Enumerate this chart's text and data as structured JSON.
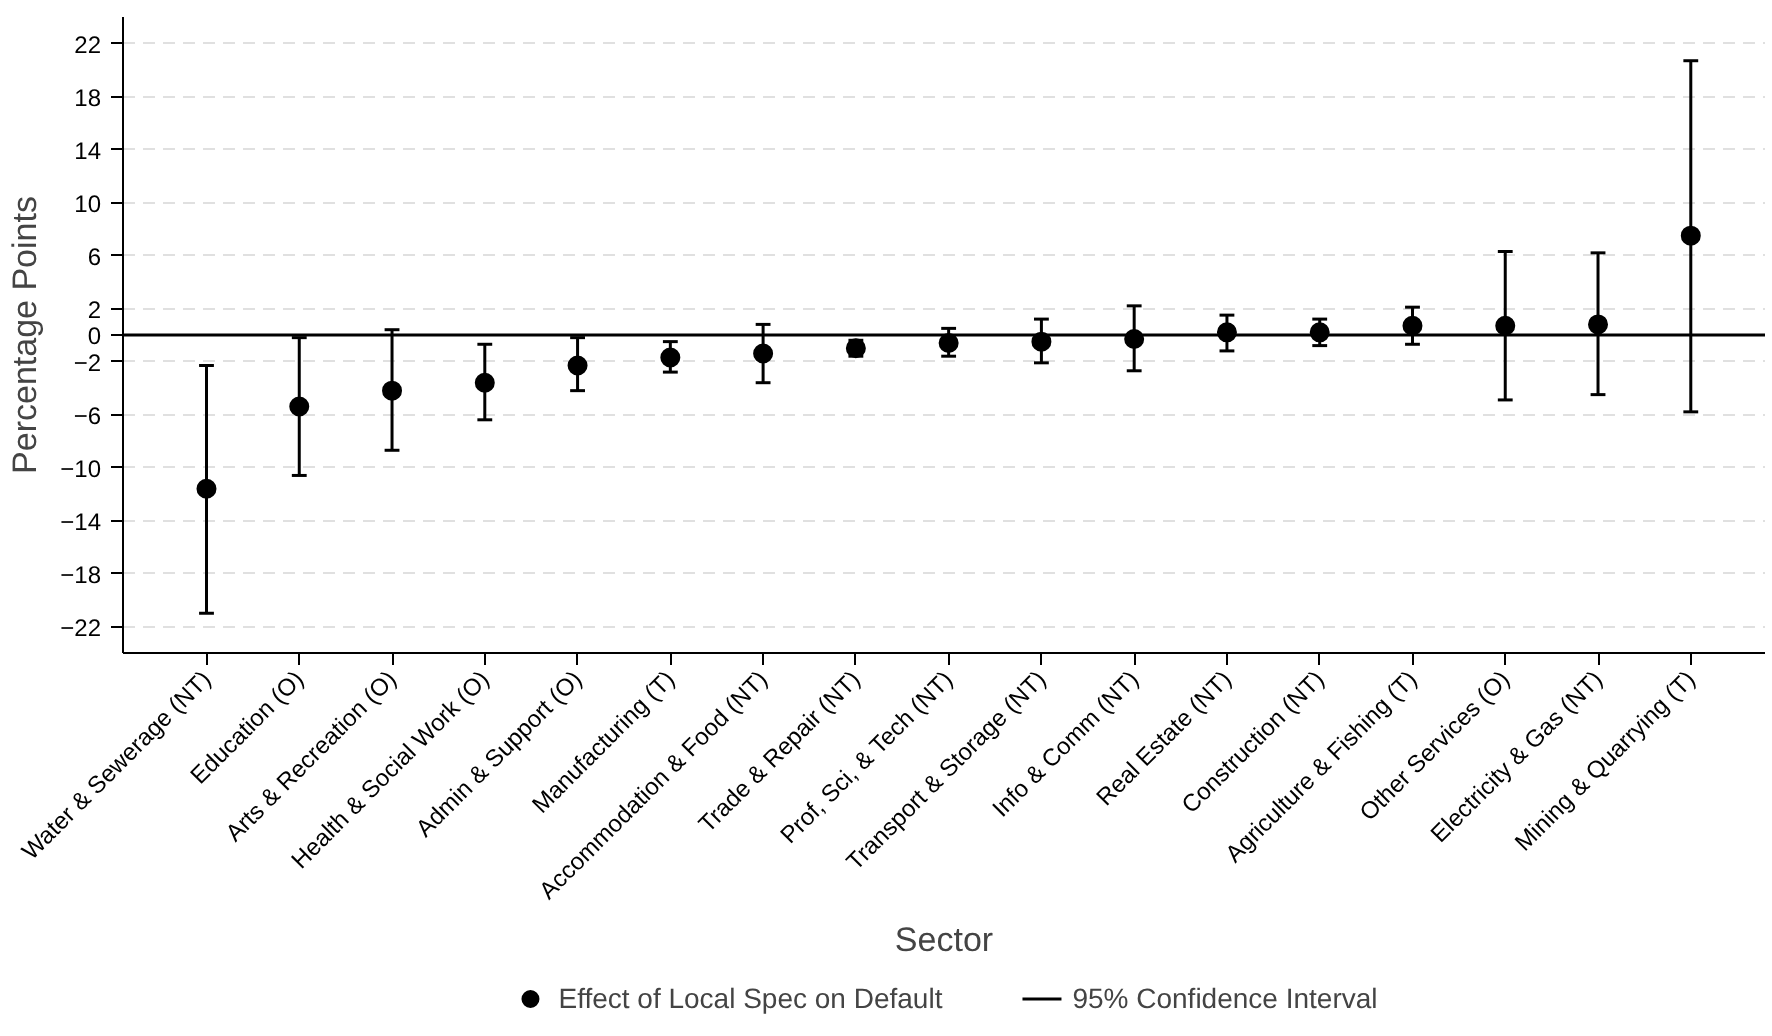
{
  "chart_data": {
    "type": "scatter",
    "xlabel": "Sector",
    "ylabel": "Percentage Points",
    "categories": [
      "Water & Sewerage (NT)",
      "Education (O)",
      "Arts & Recreation (O)",
      "Health & Social Work (O)",
      "Admin & Support (O)",
      "Manufacturing (T)",
      "Accommodation & Food (NT)",
      "Trade & Repair (NT)",
      "Prof, Sci, & Tech (NT)",
      "Transport & Storage (NT)",
      "Info & Comm (NT)",
      "Real Estate (NT)",
      "Construction (NT)",
      "Agriculture & Fishing (T)",
      "Other Services (O)",
      "Electricity & Gas (NT)",
      "Mining & Quarrying (T)"
    ],
    "series": [
      {
        "name": "Effect of Local Spec on Default",
        "color": "#000000",
        "values": [
          -11.6,
          -5.4,
          -4.2,
          -3.6,
          -2.3,
          -1.7,
          -1.4,
          -1.0,
          -0.6,
          -0.5,
          -0.3,
          0.2,
          0.2,
          0.7,
          0.7,
          0.8,
          7.5
        ],
        "errors": [
          [
            -21.0,
            -2.3
          ],
          [
            -10.6,
            -0.2
          ],
          [
            -8.7,
            0.4
          ],
          [
            -6.4,
            -0.7
          ],
          [
            -4.2,
            -0.2
          ],
          [
            -2.8,
            -0.5
          ],
          [
            -3.6,
            0.8
          ],
          [
            -1.6,
            -0.4
          ],
          [
            -1.6,
            0.5
          ],
          [
            -2.1,
            1.2
          ],
          [
            -2.7,
            2.2
          ],
          [
            -1.2,
            1.5
          ],
          [
            -0.8,
            1.2
          ],
          [
            -0.7,
            2.1
          ],
          [
            -4.9,
            6.3
          ],
          [
            -4.5,
            6.2
          ],
          [
            -5.8,
            20.7
          ]
        ]
      }
    ],
    "annotations": [
      "95% Confidence Interval"
    ],
    "ylim": [
      -24,
      24
    ],
    "yticks": [
      22,
      18,
      14,
      10,
      6,
      2,
      0,
      -2,
      -6,
      -10,
      -14,
      -18,
      -22
    ],
    "ref_lines": [
      {
        "axis": "y",
        "value": 0,
        "color": "#000000"
      }
    ],
    "grid": "y",
    "legend": "bottom",
    "marker": "circle"
  }
}
